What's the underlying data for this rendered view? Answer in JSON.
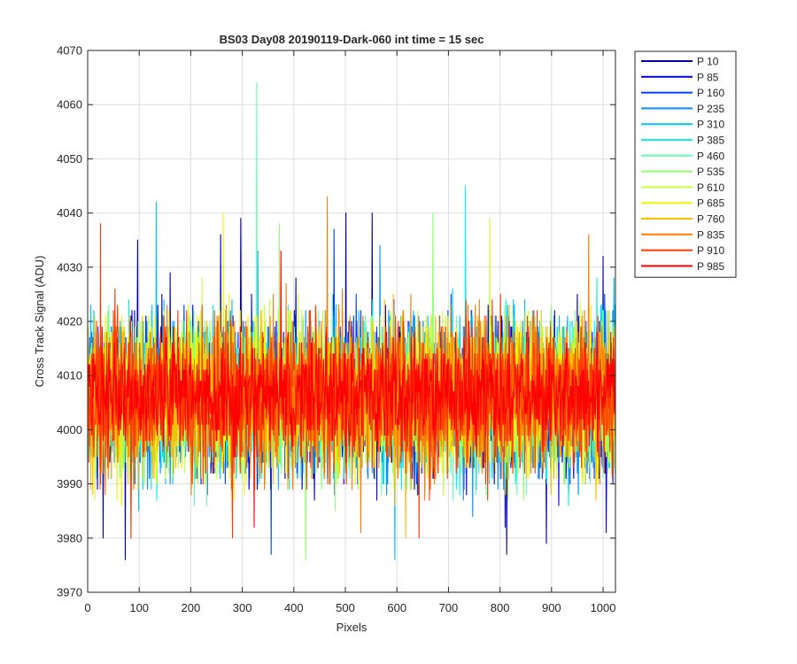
{
  "chart_data": {
    "type": "line",
    "title": "BS03 Day08 20190119-Dark-060 int time = 15 sec",
    "xlabel": "Pixels",
    "ylabel": "Cross Track Signal (ADU)",
    "xlim": [
      0,
      1024
    ],
    "ylim": [
      3970,
      4070
    ],
    "xticks": [
      0,
      100,
      200,
      300,
      400,
      500,
      600,
      700,
      800,
      900,
      1000
    ],
    "yticks": [
      3970,
      3980,
      3990,
      4000,
      4010,
      4020,
      4030,
      4040,
      4050,
      4060,
      4070
    ],
    "grid": true,
    "legend_position": "outside-top-right",
    "n_points_per_series": 1024,
    "series": [
      {
        "name": "P 10",
        "color": "#0000aa",
        "mean": 4006,
        "sd": 7.0,
        "spikes": [
          [
            30,
            3980
          ],
          [
            73,
            3976
          ],
          [
            97,
            4035
          ],
          [
            297,
            4039
          ],
          [
            501,
            4040
          ],
          [
            552,
            4040
          ],
          [
            813,
            3977
          ],
          [
            890,
            3979
          ],
          [
            1000,
            4032
          ]
        ]
      },
      {
        "name": "P 85",
        "color": "#0000e0",
        "mean": 4006,
        "sd": 7.0,
        "spikes": [
          [
            160,
            4029
          ],
          [
            258,
            4036
          ],
          [
            416,
            3989
          ],
          [
            810,
            3982
          ],
          [
            1006,
            3981
          ]
        ]
      },
      {
        "name": "P 160",
        "color": "#0040ff",
        "mean": 4006,
        "sd": 7.0,
        "spikes": [
          [
            356,
            3977
          ],
          [
            478,
            4037
          ],
          [
            640,
            3988
          ]
        ]
      },
      {
        "name": "P 235",
        "color": "#0090ff",
        "mean": 4006,
        "sd": 7.0,
        "spikes": [
          [
            330,
            4033
          ],
          [
            567,
            4034
          ]
        ]
      },
      {
        "name": "P 310",
        "color": "#00c0ff",
        "mean": 4006,
        "sd": 7.0,
        "spikes": [
          [
            133,
            4042
          ],
          [
            596,
            3976
          ]
        ]
      },
      {
        "name": "P 385",
        "color": "#10eeee",
        "mean": 4006,
        "sd": 7.0,
        "spikes": [
          [
            733,
            4045
          ]
        ]
      },
      {
        "name": "P 460",
        "color": "#60ffb0",
        "mean": 4006,
        "sd": 7.0,
        "spikes": [
          [
            328,
            4064
          ]
        ]
      },
      {
        "name": "P 535",
        "color": "#90ff70",
        "mean": 4006,
        "sd": 7.0,
        "spikes": [
          [
            372,
            4038
          ],
          [
            423,
            3976
          ],
          [
            670,
            4040
          ]
        ]
      },
      {
        "name": "P 610",
        "color": "#c8ff3a",
        "mean": 4006,
        "sd": 7.0,
        "spikes": [
          [
            780,
            4039
          ]
        ]
      },
      {
        "name": "P 685",
        "color": "#f4f400",
        "mean": 4006,
        "sd": 7.0,
        "spikes": [
          [
            66,
            3986
          ],
          [
            263,
            4040
          ]
        ]
      },
      {
        "name": "P 760",
        "color": "#ffbc00",
        "mean": 4006,
        "sd": 7.0,
        "spikes": [
          [
            617,
            3980
          ]
        ]
      },
      {
        "name": "P 835",
        "color": "#ff7a00",
        "mean": 4006,
        "sd": 7.0,
        "spikes": [
          [
            465,
            4043
          ],
          [
            530,
            3981
          ],
          [
            972,
            4036
          ]
        ]
      },
      {
        "name": "P 910",
        "color": "#ff3a00",
        "mean": 4006,
        "sd": 7.0,
        "spikes": [
          [
            25,
            4038
          ],
          [
            84,
            3980
          ],
          [
            281,
            3980
          ],
          [
            643,
            3980
          ]
        ]
      },
      {
        "name": "P 985",
        "color": "#ff0000",
        "mean": 4007,
        "sd": 5.0,
        "spikes": [
          [
            323,
            3982
          ],
          [
            375,
            4033
          ]
        ]
      }
    ]
  }
}
